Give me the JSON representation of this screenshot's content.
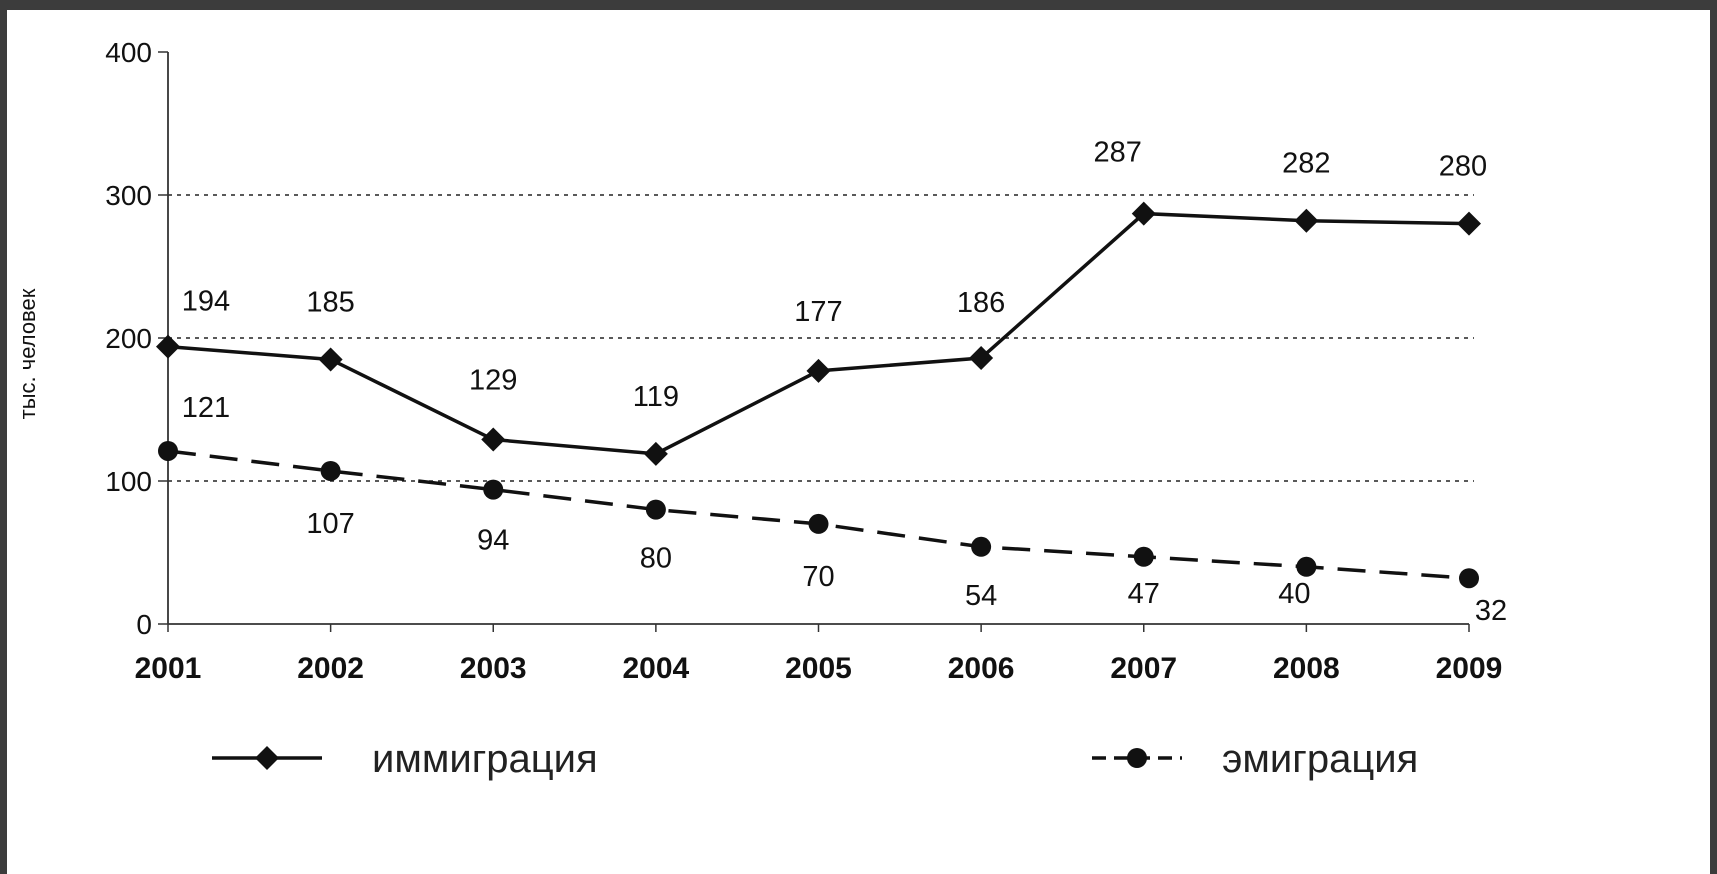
{
  "chart_data": {
    "type": "line",
    "ylabel": "тыс. человек",
    "x": [
      "2001",
      "2002",
      "2003",
      "2004",
      "2005",
      "2006",
      "2007",
      "2008",
      "2009"
    ],
    "ylim": [
      0,
      400
    ],
    "yticks": [
      "0",
      "100",
      "200",
      "300",
      "400"
    ],
    "grid": "horizontal dotted",
    "legend_position": "bottom",
    "series": [
      {
        "name": "иммиграция",
        "values": [
          194,
          185,
          129,
          119,
          177,
          186,
          287,
          282,
          280
        ],
        "labels": [
          "194",
          "185",
          "129",
          "119",
          "177",
          "186",
          "287",
          "282",
          "280"
        ],
        "line_style": "solid",
        "marker": "diamond",
        "color": "#111111"
      },
      {
        "name": "эмиграция",
        "values": [
          121,
          107,
          94,
          80,
          70,
          54,
          47,
          40,
          32
        ],
        "labels": [
          "121",
          "107",
          "94",
          "80",
          "70",
          "54",
          "47",
          "40",
          "32"
        ],
        "line_style": "dashed",
        "marker": "circle",
        "color": "#111111"
      }
    ]
  }
}
